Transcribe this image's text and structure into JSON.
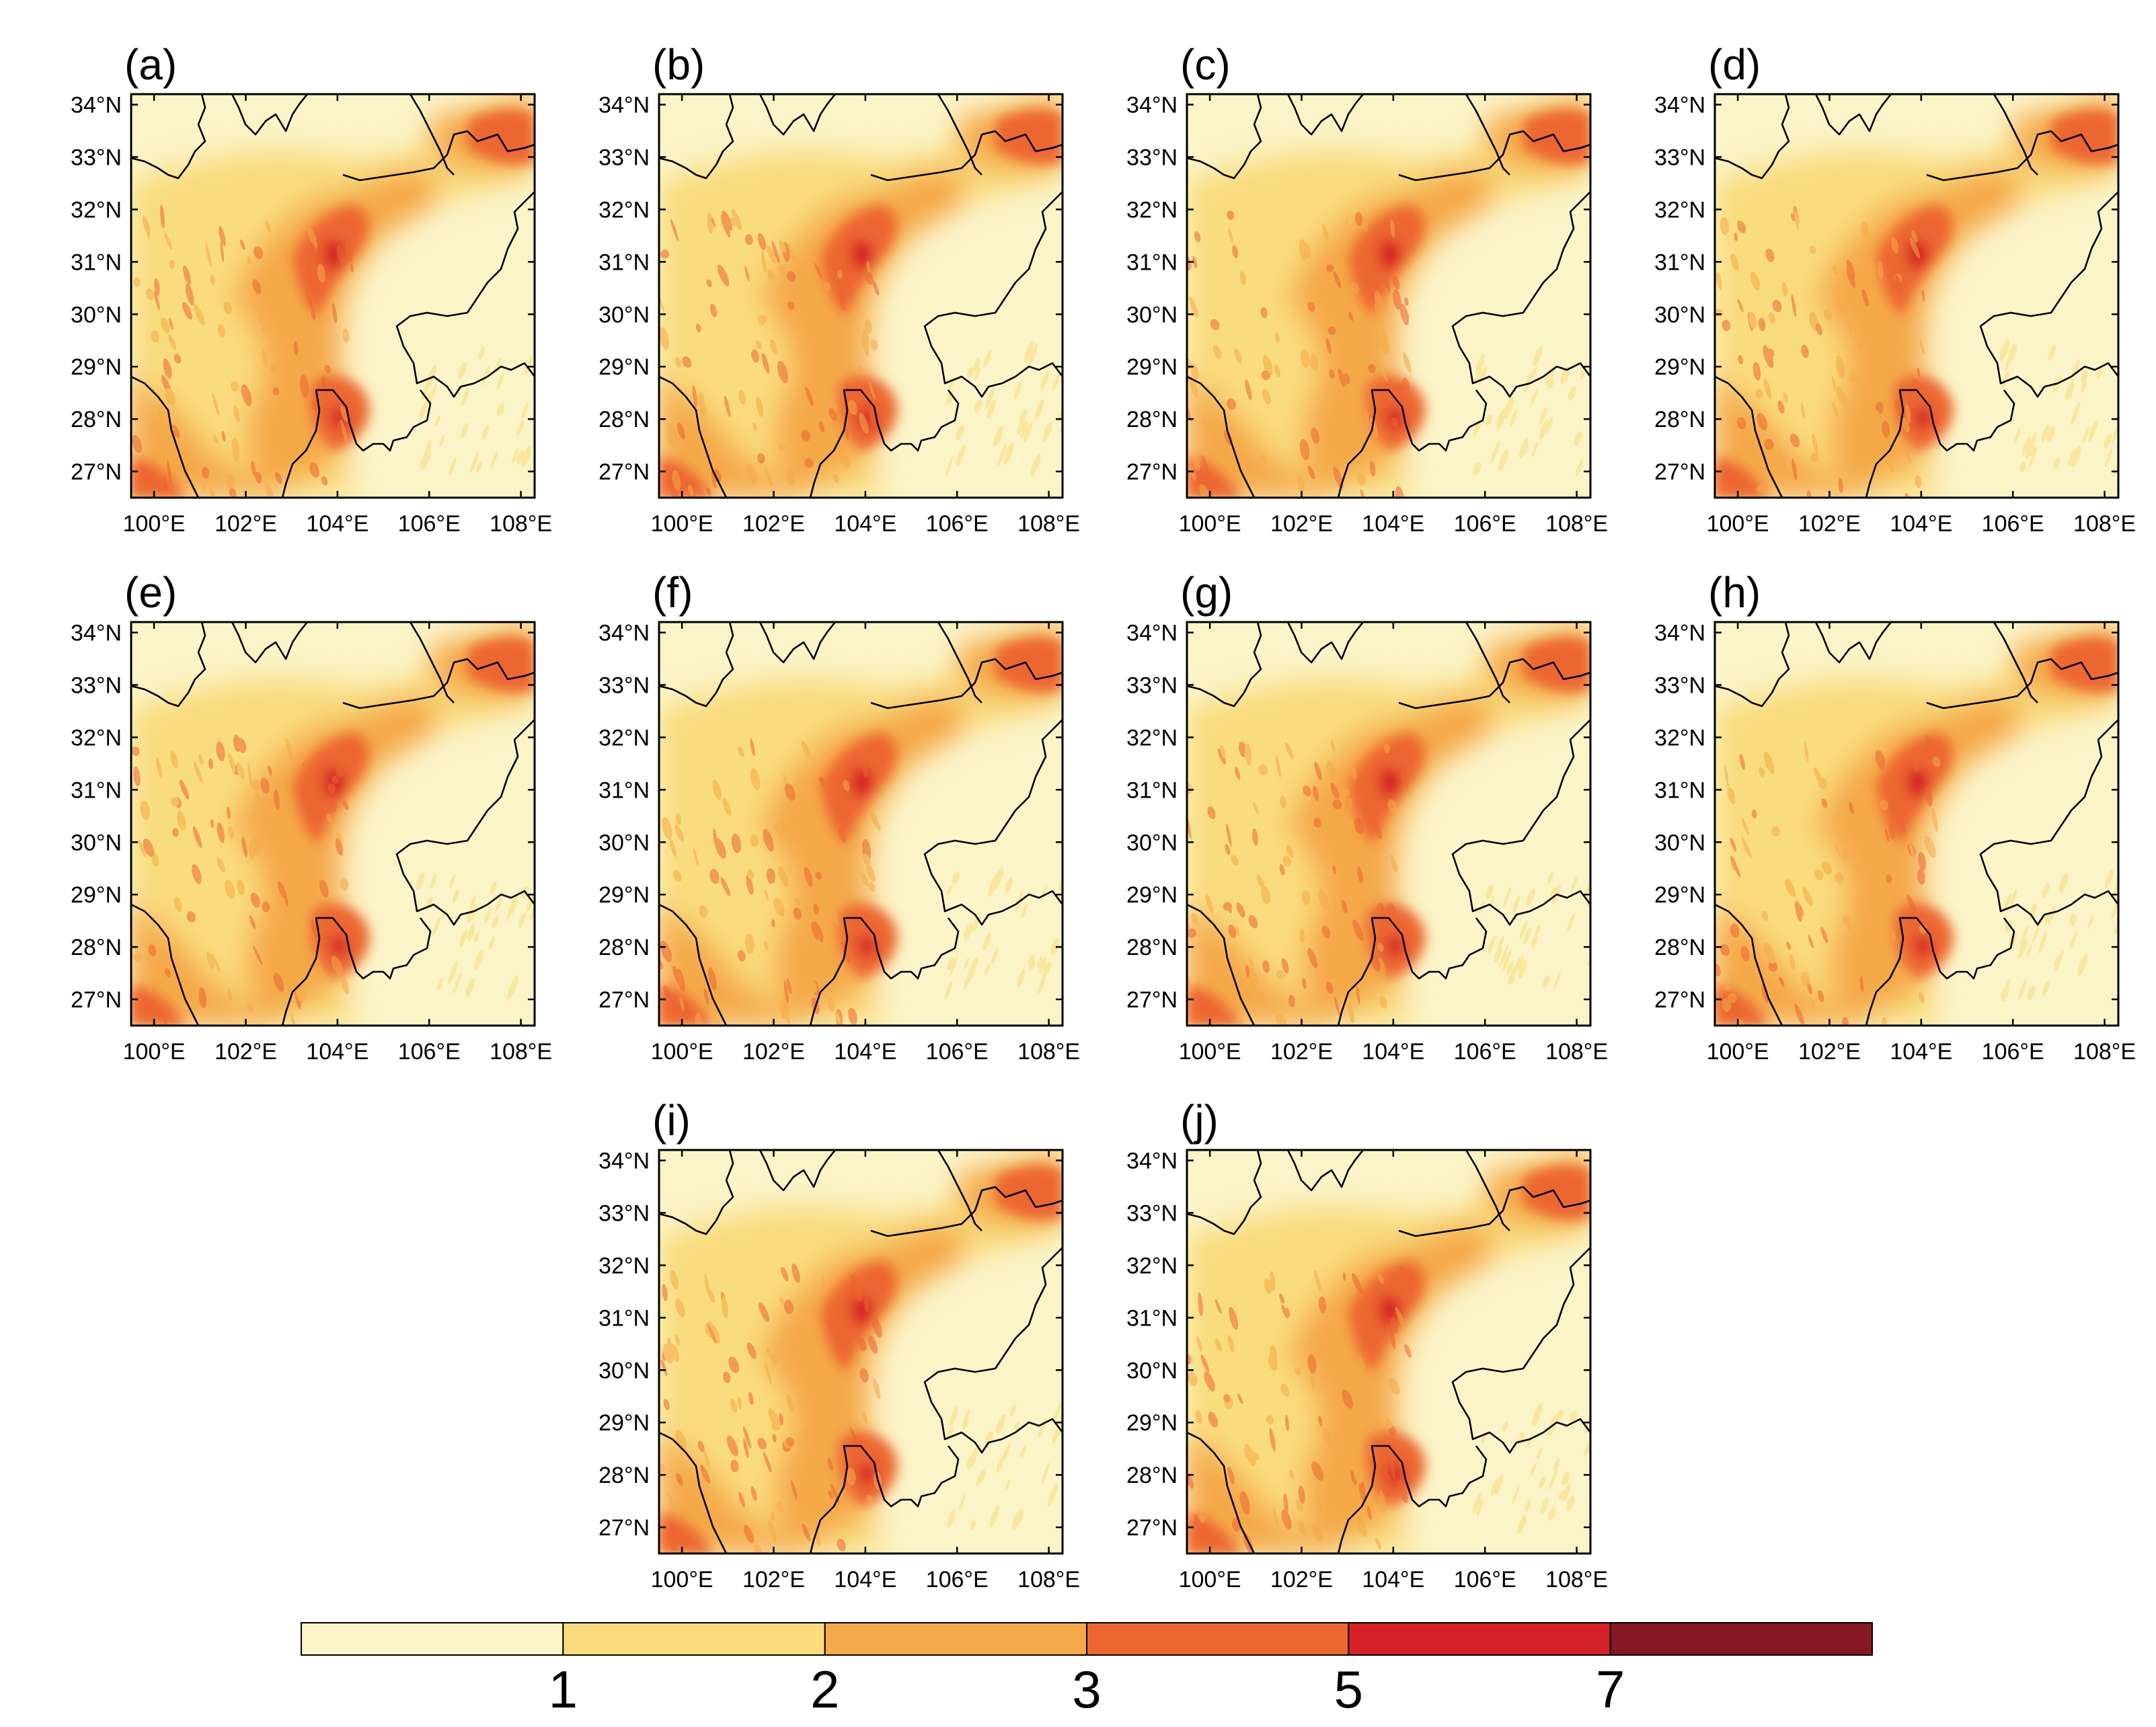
{
  "figure": {
    "panels": [
      {
        "id": "a",
        "label": "(a)"
      },
      {
        "id": "b",
        "label": "(b)"
      },
      {
        "id": "c",
        "label": "(c)"
      },
      {
        "id": "d",
        "label": "(d)"
      },
      {
        "id": "e",
        "label": "(e)"
      },
      {
        "id": "f",
        "label": "(f)"
      },
      {
        "id": "g",
        "label": "(g)"
      },
      {
        "id": "h",
        "label": "(h)"
      },
      {
        "id": "i",
        "label": "(i)"
      },
      {
        "id": "j",
        "label": "(j)"
      }
    ],
    "lat_labels": [
      "34°N",
      "33°N",
      "32°N",
      "31°N",
      "30°N",
      "29°N",
      "28°N",
      "27°N"
    ],
    "lon_labels": [
      "100°E",
      "102°E",
      "104°E",
      "106°E",
      "108°E"
    ],
    "map_extent": {
      "lon_min": 99.5,
      "lon_max": 108.3,
      "lat_min": 26.5,
      "lat_max": 34.2
    },
    "colorbar": {
      "colors": [
        "#fbf4c8",
        "#f9dc7e",
        "#f4a94a",
        "#ec6632",
        "#d42228",
        "#861826"
      ],
      "tick_labels": [
        "1",
        "2",
        "3",
        "5",
        "7"
      ]
    }
  }
}
